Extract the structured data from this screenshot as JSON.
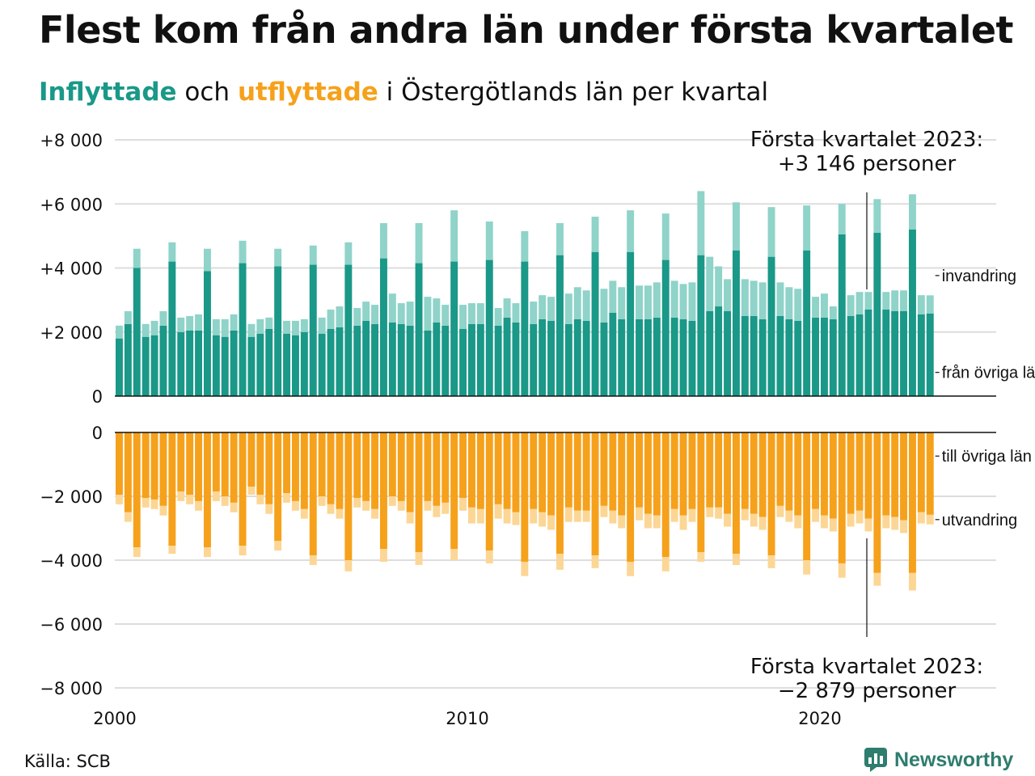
{
  "title": "Flest kom från andra län under första kvartalet",
  "subtitle": {
    "part1": "Inflyttade",
    "part2": " och ",
    "part3": "utflyttade",
    "part4": " i Östergötlands län per kvartal"
  },
  "colors": {
    "in_domestic": "#1a9888",
    "in_immigration": "#8fd3c9",
    "out_domestic": "#f6a11b",
    "out_emigration": "#fcd695",
    "grid": "#dddddd",
    "axis": "#111111"
  },
  "source": "Källa: SCB",
  "logo": {
    "text": "Newsworthy",
    "icon": "bar-chart-speech-bubble-icon"
  },
  "chart_data": {
    "type": "bar",
    "layout": "stacked, mirrored (inflow above zero, outflow below zero)",
    "x_start": "2000 Q1",
    "x_end": "2023 Q1",
    "x_tick_labels": [
      "2000",
      "2010",
      "2020"
    ],
    "xlim": [
      "2000 Q1",
      "2025 Q1"
    ],
    "top_y_ticks": [
      "+8 000",
      "+6 000",
      "+4 000",
      "+2 000",
      "0"
    ],
    "top_ylim": [
      0,
      8000
    ],
    "bottom_y_ticks": [
      "0",
      "−2 000",
      "−4 000",
      "−6 000",
      "−8 000"
    ],
    "bottom_ylim": [
      -8000,
      0
    ],
    "grid": true,
    "series": [
      {
        "name": "från övriga län",
        "values": [
          1800,
          2250,
          4000,
          1850,
          1900,
          2200,
          4200,
          2000,
          2050,
          2050,
          3900,
          1900,
          1850,
          2050,
          4150,
          1850,
          1950,
          2100,
          4050,
          1950,
          1900,
          2000,
          4100,
          1950,
          2100,
          2150,
          4100,
          2200,
          2350,
          2250,
          4300,
          2300,
          2250,
          2200,
          4150,
          2050,
          2300,
          2200,
          4200,
          2100,
          2250,
          2250,
          4250,
          2200,
          2450,
          2300,
          4200,
          2250,
          2400,
          2350,
          4400,
          2250,
          2400,
          2350,
          4500,
          2300,
          2600,
          2400,
          4500,
          2400,
          2400,
          2450,
          4250,
          2450,
          2400,
          2350,
          4400,
          2650,
          2800,
          2650,
          4550,
          2500,
          2500,
          2400,
          4350,
          2500,
          2400,
          2350,
          4550,
          2450,
          2450,
          2400,
          5050,
          2500,
          2550,
          2700,
          5100,
          2700,
          2650,
          2650,
          5200,
          2550,
          2580
        ]
      },
      {
        "name": "invandring",
        "values": [
          400,
          400,
          600,
          400,
          450,
          450,
          600,
          450,
          450,
          500,
          700,
          500,
          550,
          500,
          700,
          400,
          450,
          350,
          550,
          400,
          450,
          400,
          600,
          500,
          600,
          650,
          700,
          550,
          600,
          600,
          1100,
          900,
          650,
          750,
          1250,
          1050,
          750,
          650,
          1600,
          750,
          650,
          650,
          1200,
          550,
          600,
          600,
          950,
          700,
          750,
          750,
          1000,
          950,
          1000,
          950,
          1100,
          1050,
          1000,
          1000,
          1300,
          1050,
          1050,
          1100,
          1450,
          1150,
          1100,
          1200,
          2000,
          1700,
          1250,
          1000,
          1500,
          1150,
          1100,
          1150,
          1550,
          1050,
          1000,
          1000,
          1400,
          650,
          750,
          400,
          950,
          650,
          700,
          550,
          1050,
          550,
          650,
          650,
          1100,
          600,
          566
        ]
      },
      {
        "name": "till övriga län",
        "values": [
          1950,
          2500,
          3600,
          2050,
          2100,
          2300,
          3550,
          1850,
          1950,
          2150,
          3600,
          1850,
          2000,
          2200,
          3550,
          1700,
          1950,
          2250,
          3400,
          1900,
          2150,
          2400,
          3850,
          2000,
          2250,
          2400,
          4000,
          2050,
          2150,
          2400,
          3650,
          2000,
          2150,
          2500,
          3750,
          2150,
          2300,
          2200,
          3650,
          2050,
          2350,
          2400,
          3700,
          2250,
          2400,
          2500,
          4050,
          2400,
          2500,
          2600,
          3800,
          2350,
          2450,
          2450,
          3850,
          2300,
          2450,
          2600,
          4050,
          2350,
          2550,
          2600,
          3900,
          2400,
          2600,
          2400,
          3750,
          2350,
          2350,
          2550,
          3800,
          2400,
          2550,
          2650,
          3850,
          2300,
          2450,
          2600,
          4000,
          2400,
          2600,
          2700,
          4100,
          2550,
          2450,
          2700,
          4400,
          2600,
          2650,
          2750,
          4400,
          2500,
          2579
        ]
      },
      {
        "name": "utvandring",
        "values": [
          300,
          300,
          300,
          300,
          300,
          300,
          250,
          300,
          300,
          300,
          300,
          300,
          300,
          300,
          300,
          250,
          300,
          300,
          300,
          300,
          300,
          300,
          300,
          300,
          300,
          300,
          350,
          300,
          300,
          300,
          400,
          300,
          300,
          350,
          400,
          300,
          350,
          350,
          350,
          400,
          500,
          450,
          400,
          450,
          450,
          400,
          450,
          450,
          450,
          450,
          500,
          450,
          350,
          350,
          400,
          350,
          400,
          400,
          450,
          400,
          450,
          400,
          450,
          400,
          450,
          400,
          300,
          300,
          350,
          400,
          350,
          350,
          400,
          400,
          400,
          350,
          350,
          400,
          450,
          400,
          400,
          400,
          450,
          400,
          400,
          400,
          400,
          400,
          400,
          400,
          550,
          350,
          300
        ]
      }
    ],
    "inline_labels": {
      "invandring": "invandring",
      "fran_ovriga_lan": "från övriga län",
      "till_ovriga_lan": "till övriga län",
      "utvandring": "utvandring"
    },
    "annotations": {
      "top": {
        "line1": "Första kvartalet 2023:",
        "line2": "+3 146 personer"
      },
      "bottom": {
        "line1": "Första kvartalet 2023:",
        "line2": "−2 879 personer"
      }
    }
  }
}
